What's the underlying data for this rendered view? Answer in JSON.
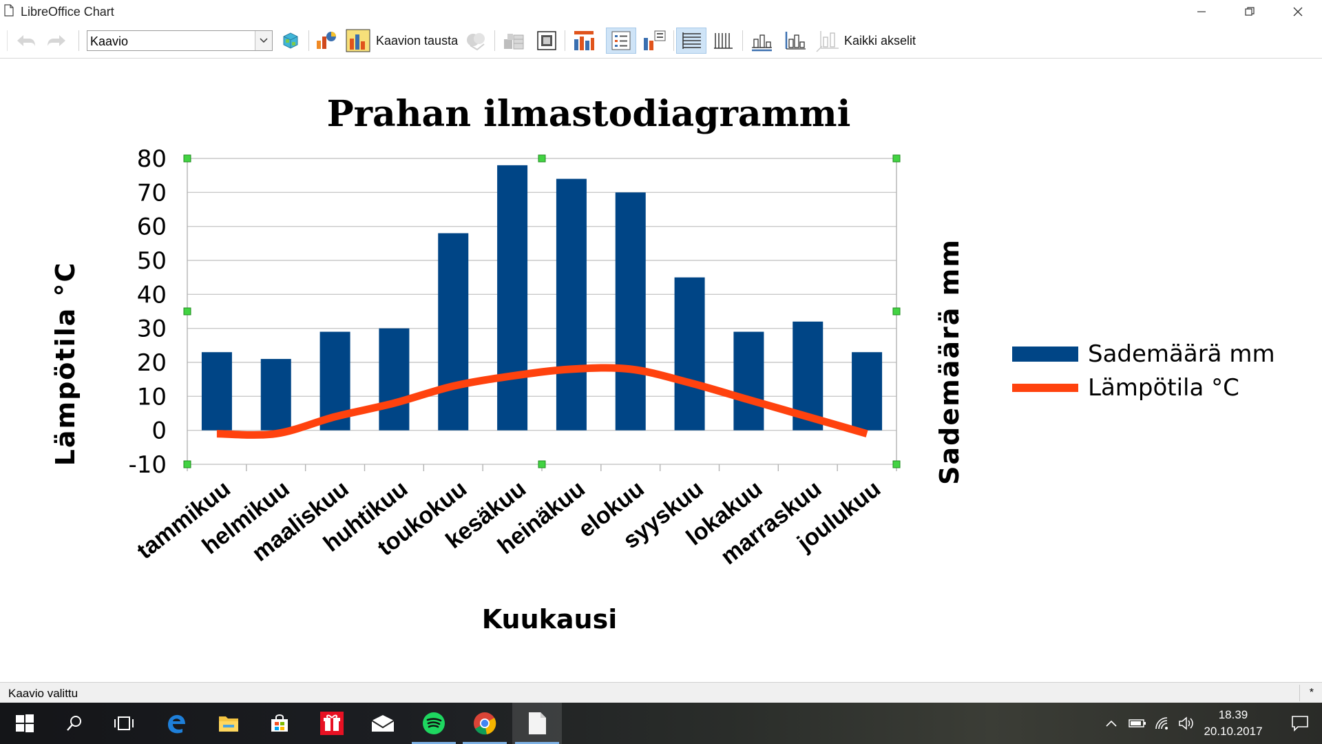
{
  "window": {
    "title": "LibreOffice Chart"
  },
  "toolbar": {
    "element_select_value": "Kaavio",
    "background_label": "Kaavion tausta",
    "all_axes_label": "Kaikki akselit"
  },
  "chart_data": {
    "type": "bar",
    "title": "Prahan ilmastodiagrammi",
    "xlabel": "Kuukausi",
    "ylabel": "Lämpötila °C",
    "y2label": "Sademäärä mm",
    "ylim": [
      -10,
      80
    ],
    "yticks": [
      "80",
      "70",
      "60",
      "50",
      "40",
      "30",
      "20",
      "10",
      "0",
      "-10"
    ],
    "grid": true,
    "legend_position": "right",
    "categories": [
      "tammikuu",
      "helmikuu",
      "maaliskuu",
      "huhtikuu",
      "toukokuu",
      "kesäkuu",
      "heinäkuu",
      "elokuu",
      "syyskuu",
      "lokakuu",
      "marraskuu",
      "joulukuu"
    ],
    "series": [
      {
        "name": "Sademäärä mm",
        "type": "bar",
        "color": "#004586",
        "values": [
          23,
          21,
          29,
          30,
          58,
          78,
          74,
          70,
          45,
          29,
          32,
          23
        ]
      },
      {
        "name": "Lämpötila °C",
        "type": "line",
        "color": "#ff420e",
        "values": [
          -1,
          -1,
          4,
          8,
          13,
          16,
          18,
          18,
          14,
          9,
          4,
          -1
        ]
      }
    ]
  },
  "status": {
    "text": "Kaavio valittu",
    "modified": "*"
  },
  "taskbar": {
    "apps": [
      "start-icon",
      "search-icon",
      "task-view-icon",
      "edge-icon",
      "file-explorer-icon",
      "store-icon",
      "gift-icon",
      "mail-icon",
      "spotify-icon",
      "chrome-icon",
      "libreoffice-icon"
    ],
    "clock": {
      "time": "18.39",
      "date": "20.10.2017"
    }
  }
}
